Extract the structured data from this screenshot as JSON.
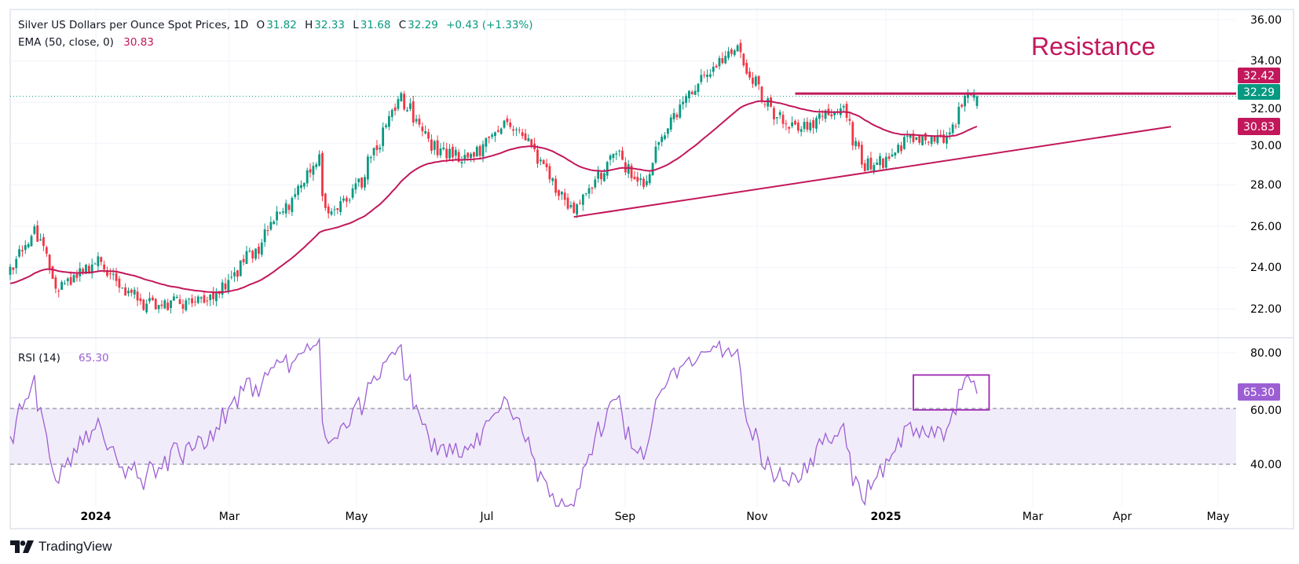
{
  "header": {
    "symbol_title": "Silver US Dollars per Ounce Spot Prices, 1D",
    "o_label": "O",
    "o": "31.82",
    "h_label": "H",
    "h": "32.33",
    "l_label": "L",
    "l": "31.68",
    "c_label": "C",
    "c": "32.29",
    "change": "+0.43 (+1.33%)"
  },
  "ema_legend": {
    "label": "EMA (50, close, 0)",
    "value": "30.83"
  },
  "rsi_legend": {
    "label": "RSI (14)",
    "value": "65.30"
  },
  "annotation": {
    "resistance_text": "Resistance"
  },
  "price_axis": {
    "ticks": [
      "36.00",
      "34.00",
      "32.00",
      "30.00",
      "28.00",
      "26.00",
      "24.00",
      "22.00"
    ]
  },
  "price_badges": {
    "resistance": "32.42",
    "last": "32.29",
    "ema": "30.83"
  },
  "rsi_axis": {
    "ticks": [
      "80.00",
      "60.00",
      "40.00"
    ],
    "badge": "65.30"
  },
  "time_axis": {
    "labels": [
      "2024",
      "Mar",
      "May",
      "Jul",
      "Sep",
      "Nov",
      "2025",
      "Mar",
      "Apr",
      "May"
    ]
  },
  "brand": "TradingView",
  "colors": {
    "up": "#089981",
    "down": "#f23645",
    "ema": "#c2185b",
    "resistance": "#c2185b",
    "trendline": "#c2185b",
    "rsi": "#9c5fd3",
    "rsi_band": "#f1ecfa",
    "rsi_box": "#9c27b0",
    "grid": "#f0f3fa",
    "axis_text": "#131722"
  },
  "chart_data": {
    "type": "candlestick",
    "title": "Silver US Dollars per Ounce Spot Prices, 1D",
    "first_bar_date": "2023-11-22",
    "last_bar_date": "2025-02-11",
    "ylim": [
      21.0,
      36.5
    ],
    "close_anchors": [
      [
        "2023-11-22",
        23.7
      ],
      [
        "2023-12-04",
        25.9
      ],
      [
        "2023-12-14",
        22.9
      ],
      [
        "2024-01-02",
        24.2
      ],
      [
        "2024-01-22",
        22.2
      ],
      [
        "2024-02-14",
        22.3
      ],
      [
        "2024-02-28",
        23.0
      ],
      [
        "2024-03-15",
        25.0
      ],
      [
        "2024-04-08",
        28.6
      ],
      [
        "2024-04-12",
        29.3
      ],
      [
        "2024-04-17",
        26.7
      ],
      [
        "2024-04-28",
        27.3
      ],
      [
        "2024-05-20",
        32.3
      ],
      [
        "2024-06-05",
        29.8
      ],
      [
        "2024-06-21",
        29.3
      ],
      [
        "2024-07-10",
        31.0
      ],
      [
        "2024-07-22",
        29.5
      ],
      [
        "2024-08-08",
        26.6
      ],
      [
        "2024-08-28",
        29.6
      ],
      [
        "2024-09-09",
        28.0
      ],
      [
        "2024-09-27",
        32.0
      ],
      [
        "2024-10-22",
        34.7
      ],
      [
        "2024-11-08",
        31.5
      ],
      [
        "2024-11-20",
        30.6
      ],
      [
        "2024-12-10",
        31.8
      ],
      [
        "2024-12-20",
        29.0
      ],
      [
        "2025-01-02",
        29.2
      ],
      [
        "2025-01-10",
        30.3
      ],
      [
        "2025-01-27",
        30.2
      ],
      [
        "2025-02-05",
        32.3
      ],
      [
        "2025-02-11",
        32.29
      ]
    ],
    "last_bar": {
      "open": 31.82,
      "high": 32.33,
      "low": 31.68,
      "close": 32.29
    },
    "ema": {
      "period": 50,
      "last": 30.83
    },
    "resistance": {
      "price": 32.42,
      "from": "2024-11-19"
    },
    "trendline": {
      "from": [
        "2024-08-08",
        26.45
      ],
      "to": [
        "2025-05-12",
        30.82
      ]
    },
    "rsi": {
      "period": 14,
      "last": 65.3,
      "bands": [
        40,
        60
      ],
      "ylim": [
        25,
        88
      ]
    },
    "rsi_highlight_box": {
      "from": "2025-01-13",
      "to": "2025-02-17",
      "rsi_range": [
        59.5,
        72
      ]
    }
  }
}
